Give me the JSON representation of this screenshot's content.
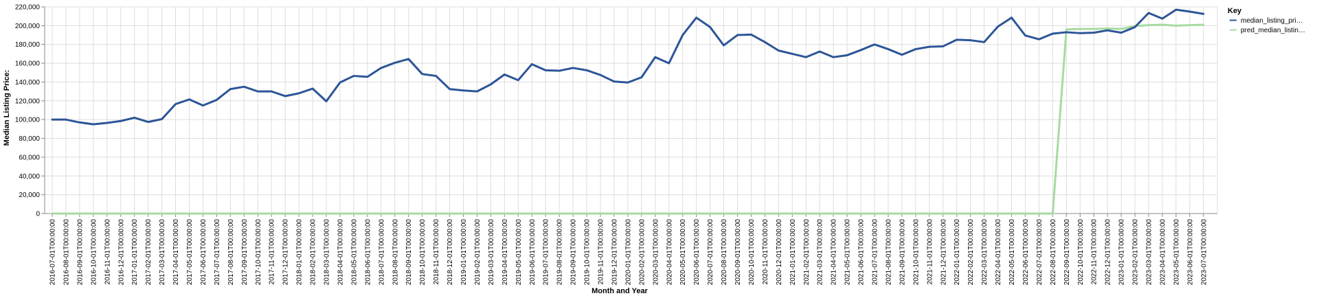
{
  "chart_data": {
    "type": "line",
    "xlabel": "Month and Year",
    "ylabel": "Median Listing Price:",
    "ylim": [
      0,
      220000
    ],
    "yticks": [
      0,
      20000,
      40000,
      60000,
      80000,
      100000,
      120000,
      140000,
      160000,
      180000,
      200000,
      220000
    ],
    "ytick_labels": [
      "0",
      "20,000",
      "40,000",
      "60,000",
      "80,000",
      "100,000",
      "120,000",
      "140,000",
      "160,000",
      "180,000",
      "200,000",
      "220,000"
    ],
    "grid": true,
    "legend": {
      "title": "Key",
      "placement": "right",
      "entries": [
        "median_listing_pri…",
        "pred_median_listin…"
      ]
    },
    "categories": [
      "2016-07-01T00:00:00",
      "2016-08-01T00:00:00",
      "2016-09-01T00:00:00",
      "2016-10-01T00:00:00",
      "2016-11-01T00:00:00",
      "2016-12-01T00:00:00",
      "2017-01-01T00:00:00",
      "2017-02-01T00:00:00",
      "2017-03-01T00:00:00",
      "2017-04-01T00:00:00",
      "2017-05-01T00:00:00",
      "2017-06-01T00:00:00",
      "2017-07-01T00:00:00",
      "2017-08-01T00:00:00",
      "2017-09-01T00:00:00",
      "2017-10-01T00:00:00",
      "2017-11-01T00:00:00",
      "2017-12-01T00:00:00",
      "2018-01-01T00:00:00",
      "2018-02-01T00:00:00",
      "2018-03-01T00:00:00",
      "2018-04-01T00:00:00",
      "2018-05-01T00:00:00",
      "2018-06-01T00:00:00",
      "2018-07-01T00:00:00",
      "2018-08-01T00:00:00",
      "2018-09-01T00:00:00",
      "2018-10-01T00:00:00",
      "2018-11-01T00:00:00",
      "2018-12-01T00:00:00",
      "2019-01-01T00:00:00",
      "2019-02-01T00:00:00",
      "2019-03-01T00:00:00",
      "2019-04-01T00:00:00",
      "2019-05-01T00:00:00",
      "2019-06-01T00:00:00",
      "2019-07-01T00:00:00",
      "2019-08-01T00:00:00",
      "2019-09-01T00:00:00",
      "2019-10-01T00:00:00",
      "2019-11-01T00:00:00",
      "2019-12-01T00:00:00",
      "2020-01-01T00:00:00",
      "2020-02-01T00:00:00",
      "2020-03-01T00:00:00",
      "2020-04-01T00:00:00",
      "2020-05-01T00:00:00",
      "2020-06-01T00:00:00",
      "2020-07-01T00:00:00",
      "2020-08-01T00:00:00",
      "2020-09-01T00:00:00",
      "2020-10-01T00:00:00",
      "2020-11-01T00:00:00",
      "2020-12-01T00:00:00",
      "2021-01-01T00:00:00",
      "2021-02-01T00:00:00",
      "2021-03-01T00:00:00",
      "2021-04-01T00:00:00",
      "2021-05-01T00:00:00",
      "2021-06-01T00:00:00",
      "2021-07-01T00:00:00",
      "2021-08-01T00:00:00",
      "2021-09-01T00:00:00",
      "2021-10-01T00:00:00",
      "2021-11-01T00:00:00",
      "2021-12-01T00:00:00",
      "2022-01-01T00:00:00",
      "2022-02-01T00:00:00",
      "2022-03-01T00:00:00",
      "2022-04-01T00:00:00",
      "2022-05-01T00:00:00",
      "2022-06-01T00:00:00",
      "2022-07-01T00:00:00",
      "2022-08-01T00:00:00",
      "2022-09-01T00:00:00",
      "2022-10-01T00:00:00",
      "2022-11-01T00:00:00",
      "2022-12-01T00:00:00",
      "2023-01-01T00:00:00",
      "2023-02-01T00:00:00",
      "2023-03-01T00:00:00",
      "2023-04-01T00:00:00",
      "2023-05-01T00:00:00",
      "2023-06-01T00:00:00",
      "2023-07-01T00:00:00"
    ],
    "series": [
      {
        "name": "median_listing_pri…",
        "color": "#2c5597",
        "values": [
          100000,
          100000,
          97000,
          95000,
          96500,
          98500,
          102000,
          97500,
          100500,
          116500,
          121500,
          115000,
          121000,
          132500,
          135000,
          130000,
          130000,
          125000,
          128000,
          133000,
          119500,
          139500,
          146500,
          145500,
          155000,
          160500,
          164500,
          148500,
          146500,
          132500,
          131000,
          130000,
          137500,
          148000,
          142000,
          159000,
          152500,
          152000,
          155000,
          152500,
          147500,
          140500,
          139500,
          145000,
          166500,
          160000,
          190000,
          208500,
          198500,
          179000,
          190000,
          190500,
          182500,
          173500,
          170000,
          166500,
          172500,
          166500,
          168500,
          174000,
          180000,
          175000,
          169000,
          175000,
          177500,
          178000,
          185000,
          184500,
          182500,
          199000,
          208500,
          189500,
          185500,
          191500,
          193000,
          192000,
          192500,
          195000,
          192500,
          198500,
          213500,
          207500,
          217000,
          215000,
          212500
        ]
      },
      {
        "name": "pred_median_listin…",
        "color": "#a6dba0",
        "values": [
          0,
          0,
          0,
          0,
          0,
          0,
          0,
          0,
          0,
          0,
          0,
          0,
          0,
          0,
          0,
          0,
          0,
          0,
          0,
          0,
          0,
          0,
          0,
          0,
          0,
          0,
          0,
          0,
          0,
          0,
          0,
          0,
          0,
          0,
          0,
          0,
          0,
          0,
          0,
          0,
          0,
          0,
          0,
          0,
          0,
          0,
          0,
          0,
          0,
          0,
          0,
          0,
          0,
          0,
          0,
          0,
          0,
          0,
          0,
          0,
          0,
          0,
          0,
          0,
          0,
          0,
          0,
          0,
          0,
          0,
          0,
          0,
          0,
          0,
          196000,
          196500,
          196500,
          197000,
          196500,
          199500,
          200500,
          201000,
          200000,
          200500,
          201000
        ]
      }
    ]
  }
}
